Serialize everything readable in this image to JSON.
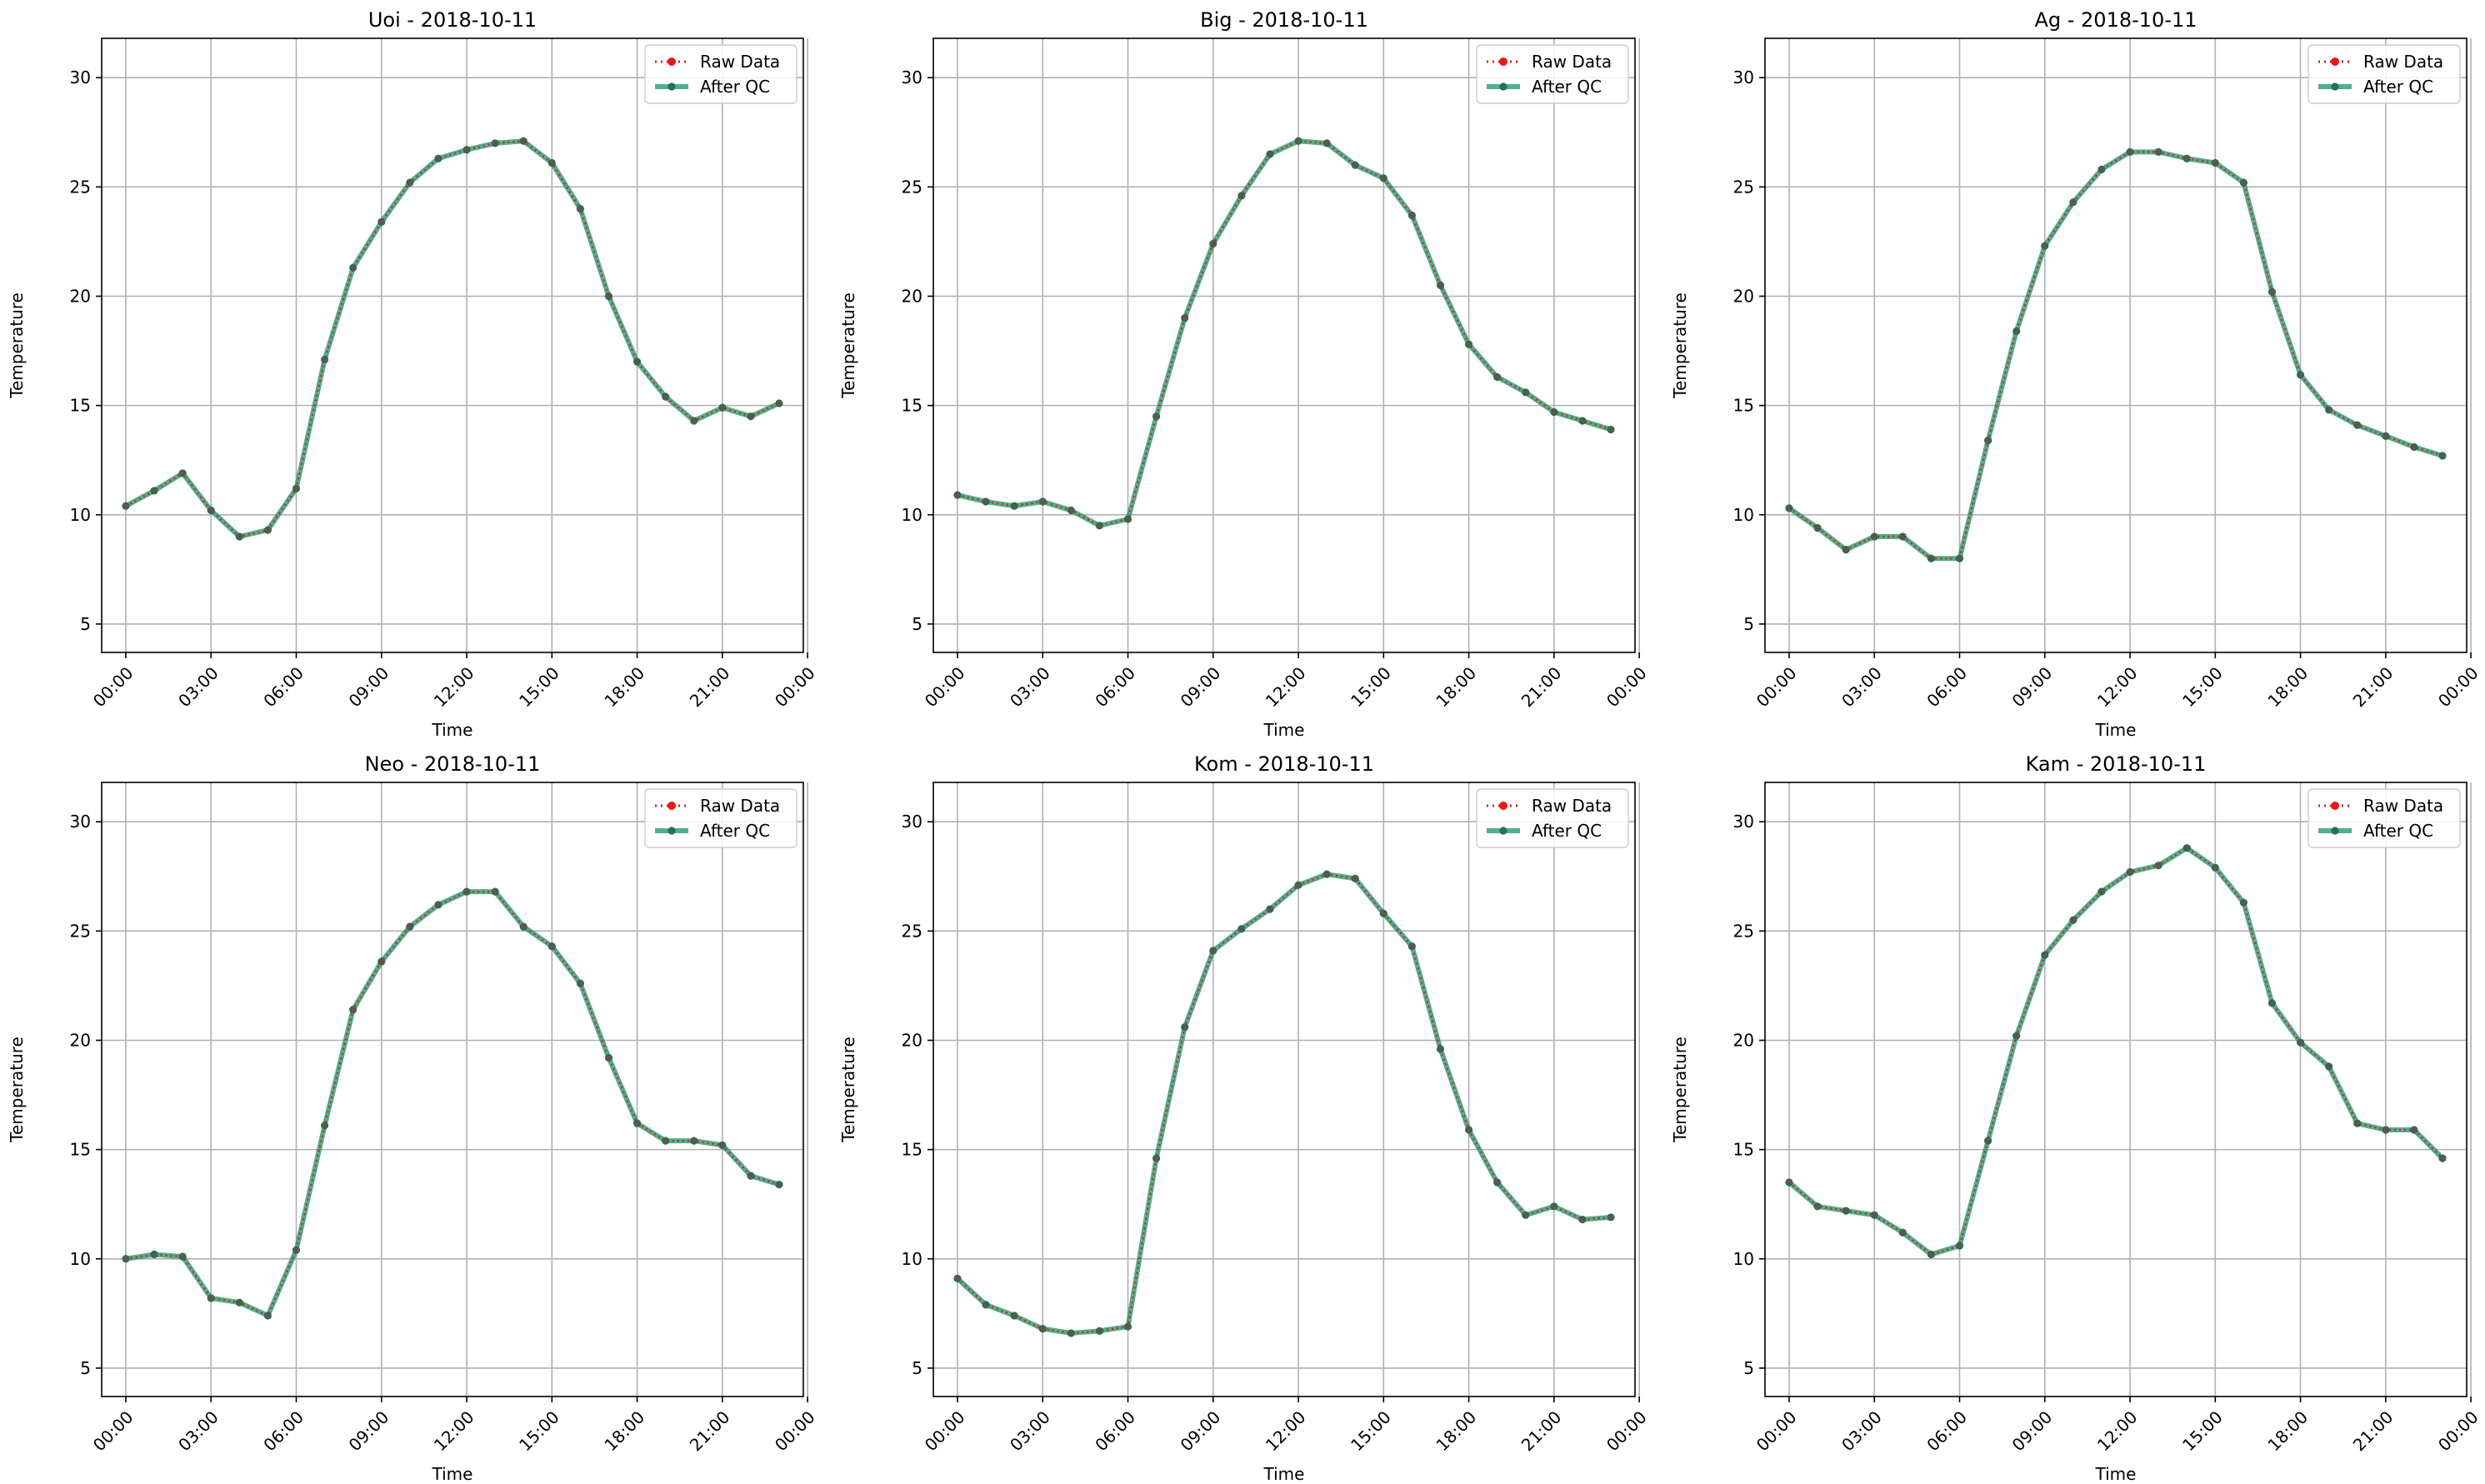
{
  "colors": {
    "raw": "#e31a1c",
    "qc": "#2a9d73",
    "qc_marker": "#2f6b55",
    "grid": "#b0b0b0"
  },
  "chart_data": [
    {
      "type": "line",
      "title": "Uoi - 2018-10-11",
      "xlabel": "Time",
      "ylabel": "Temperature",
      "ylim": [
        3.7,
        31.8
      ],
      "xlim": [
        -0.85,
        23.85
      ],
      "yticks": [
        5,
        10,
        15,
        20,
        25,
        30
      ],
      "xticks": [
        "00:00",
        "03:00",
        "06:00",
        "09:00",
        "12:00",
        "15:00",
        "18:00",
        "21:00",
        "00:00"
      ],
      "grid": true,
      "legend": "top-right",
      "x_hours": [
        0,
        1,
        2,
        3,
        4,
        5,
        6,
        7,
        8,
        9,
        10,
        11,
        12,
        13,
        14,
        15,
        16,
        17,
        18,
        19,
        20,
        21,
        22,
        23
      ],
      "series": [
        {
          "name": "Raw Data",
          "values": [
            10.4,
            11.1,
            11.9,
            10.2,
            9.0,
            9.3,
            11.2,
            17.1,
            21.3,
            23.4,
            25.2,
            26.3,
            26.7,
            27.0,
            27.1,
            26.1,
            24.0,
            20.0,
            17.0,
            15.4,
            14.3,
            14.9,
            14.5,
            15.1
          ]
        },
        {
          "name": "After QC",
          "values": [
            10.4,
            11.1,
            11.9,
            10.2,
            9.0,
            9.3,
            11.2,
            17.1,
            21.3,
            23.4,
            25.2,
            26.3,
            26.7,
            27.0,
            27.1,
            26.1,
            24.0,
            20.0,
            17.0,
            15.4,
            14.3,
            14.9,
            14.5,
            15.1
          ]
        }
      ]
    },
    {
      "type": "line",
      "title": "Big - 2018-10-11",
      "xlabel": "Time",
      "ylabel": "Temperature",
      "ylim": [
        3.7,
        31.8
      ],
      "xlim": [
        -0.85,
        23.85
      ],
      "yticks": [
        5,
        10,
        15,
        20,
        25,
        30
      ],
      "xticks": [
        "00:00",
        "03:00",
        "06:00",
        "09:00",
        "12:00",
        "15:00",
        "18:00",
        "21:00",
        "00:00"
      ],
      "grid": true,
      "legend": "top-right",
      "x_hours": [
        0,
        1,
        2,
        3,
        4,
        5,
        6,
        7,
        8,
        9,
        10,
        11,
        12,
        13,
        14,
        15,
        16,
        17,
        18,
        19,
        20,
        21,
        22,
        23
      ],
      "series": [
        {
          "name": "Raw Data",
          "values": [
            10.9,
            10.6,
            10.4,
            10.6,
            10.2,
            9.5,
            9.8,
            14.5,
            19.0,
            22.4,
            24.6,
            26.5,
            27.1,
            27.0,
            26.0,
            25.4,
            23.7,
            20.5,
            17.8,
            16.3,
            15.6,
            14.7,
            14.3,
            13.9
          ]
        },
        {
          "name": "After QC",
          "values": [
            10.9,
            10.6,
            10.4,
            10.6,
            10.2,
            9.5,
            9.8,
            14.5,
            19.0,
            22.4,
            24.6,
            26.5,
            27.1,
            27.0,
            26.0,
            25.4,
            23.7,
            20.5,
            17.8,
            16.3,
            15.6,
            14.7,
            14.3,
            13.9
          ]
        }
      ]
    },
    {
      "type": "line",
      "title": "Ag - 2018-10-11",
      "xlabel": "Time",
      "ylabel": "Temperature",
      "ylim": [
        3.7,
        31.8
      ],
      "xlim": [
        -0.85,
        23.85
      ],
      "yticks": [
        5,
        10,
        15,
        20,
        25,
        30
      ],
      "xticks": [
        "00:00",
        "03:00",
        "06:00",
        "09:00",
        "12:00",
        "15:00",
        "18:00",
        "21:00",
        "00:00"
      ],
      "grid": true,
      "legend": "top-right",
      "x_hours": [
        0,
        1,
        2,
        3,
        4,
        5,
        6,
        7,
        8,
        9,
        10,
        11,
        12,
        13,
        14,
        15,
        16,
        17,
        18,
        19,
        20,
        21,
        22,
        23
      ],
      "series": [
        {
          "name": "Raw Data",
          "values": [
            10.3,
            9.4,
            8.4,
            9.0,
            9.0,
            8.0,
            8.0,
            13.4,
            18.4,
            22.3,
            24.3,
            25.8,
            26.6,
            26.6,
            26.3,
            26.1,
            25.2,
            20.2,
            16.4,
            14.8,
            14.1,
            13.6,
            13.1,
            12.7
          ]
        },
        {
          "name": "After QC",
          "values": [
            10.3,
            9.4,
            8.4,
            9.0,
            9.0,
            8.0,
            8.0,
            13.4,
            18.4,
            22.3,
            24.3,
            25.8,
            26.6,
            26.6,
            26.3,
            26.1,
            25.2,
            20.2,
            16.4,
            14.8,
            14.1,
            13.6,
            13.1,
            12.7
          ]
        }
      ]
    },
    {
      "type": "line",
      "title": "Neo - 2018-10-11",
      "xlabel": "Time",
      "ylabel": "Temperature",
      "ylim": [
        3.7,
        31.8
      ],
      "xlim": [
        -0.85,
        23.85
      ],
      "yticks": [
        5,
        10,
        15,
        20,
        25,
        30
      ],
      "xticks": [
        "00:00",
        "03:00",
        "06:00",
        "09:00",
        "12:00",
        "15:00",
        "18:00",
        "21:00",
        "00:00"
      ],
      "grid": true,
      "legend": "top-right",
      "x_hours": [
        0,
        1,
        2,
        3,
        4,
        5,
        6,
        7,
        8,
        9,
        10,
        11,
        12,
        13,
        14,
        15,
        16,
        17,
        18,
        19,
        20,
        21,
        22,
        23
      ],
      "series": [
        {
          "name": "Raw Data",
          "values": [
            10.0,
            10.2,
            10.1,
            8.2,
            8.0,
            7.4,
            10.4,
            16.1,
            21.4,
            23.6,
            25.2,
            26.2,
            26.8,
            26.8,
            25.2,
            24.3,
            22.6,
            19.2,
            16.2,
            15.4,
            15.4,
            15.2,
            13.8,
            13.4
          ]
        },
        {
          "name": "After QC",
          "values": [
            10.0,
            10.2,
            10.1,
            8.2,
            8.0,
            7.4,
            10.4,
            16.1,
            21.4,
            23.6,
            25.2,
            26.2,
            26.8,
            26.8,
            25.2,
            24.3,
            22.6,
            19.2,
            16.2,
            15.4,
            15.4,
            15.2,
            13.8,
            13.4
          ]
        }
      ]
    },
    {
      "type": "line",
      "title": "Kom - 2018-10-11",
      "xlabel": "Time",
      "ylabel": "Temperature",
      "ylim": [
        3.7,
        31.8
      ],
      "xlim": [
        -0.85,
        23.85
      ],
      "yticks": [
        5,
        10,
        15,
        20,
        25,
        30
      ],
      "xticks": [
        "00:00",
        "03:00",
        "06:00",
        "09:00",
        "12:00",
        "15:00",
        "18:00",
        "21:00",
        "00:00"
      ],
      "grid": true,
      "legend": "top-right",
      "x_hours": [
        0,
        1,
        2,
        3,
        4,
        5,
        6,
        7,
        8,
        9,
        10,
        11,
        12,
        13,
        14,
        15,
        16,
        17,
        18,
        19,
        20,
        21,
        22,
        23
      ],
      "series": [
        {
          "name": "Raw Data",
          "values": [
            9.1,
            7.9,
            7.4,
            6.8,
            6.6,
            6.7,
            6.9,
            14.6,
            20.6,
            24.1,
            25.1,
            26.0,
            27.1,
            27.6,
            27.4,
            25.8,
            24.3,
            19.6,
            15.9,
            13.5,
            12.0,
            12.4,
            11.8,
            11.9
          ]
        },
        {
          "name": "After QC",
          "values": [
            9.1,
            7.9,
            7.4,
            6.8,
            6.6,
            6.7,
            6.9,
            14.6,
            20.6,
            24.1,
            25.1,
            26.0,
            27.1,
            27.6,
            27.4,
            25.8,
            24.3,
            19.6,
            15.9,
            13.5,
            12.0,
            12.4,
            11.8,
            11.9
          ]
        }
      ]
    },
    {
      "type": "line",
      "title": "Kam - 2018-10-11",
      "xlabel": "Time",
      "ylabel": "Temperature",
      "ylim": [
        3.7,
        31.8
      ],
      "xlim": [
        -0.85,
        23.85
      ],
      "yticks": [
        5,
        10,
        15,
        20,
        25,
        30
      ],
      "xticks": [
        "00:00",
        "03:00",
        "06:00",
        "09:00",
        "12:00",
        "15:00",
        "18:00",
        "21:00",
        "00:00"
      ],
      "grid": true,
      "legend": "top-right",
      "x_hours": [
        0,
        1,
        2,
        3,
        4,
        5,
        6,
        7,
        8,
        9,
        10,
        11,
        12,
        13,
        14,
        15,
        16,
        17,
        18,
        19,
        20,
        21,
        22,
        23
      ],
      "series": [
        {
          "name": "Raw Data",
          "values": [
            13.5,
            12.4,
            12.2,
            12.0,
            11.2,
            10.2,
            10.6,
            15.4,
            20.2,
            23.9,
            25.5,
            26.8,
            27.7,
            28.0,
            28.8,
            27.9,
            26.3,
            21.7,
            19.9,
            18.8,
            16.2,
            15.9,
            15.9,
            14.6
          ]
        },
        {
          "name": "After QC",
          "values": [
            13.5,
            12.4,
            12.2,
            12.0,
            11.2,
            10.2,
            10.6,
            15.4,
            20.2,
            23.9,
            25.5,
            26.8,
            27.7,
            28.0,
            28.8,
            27.9,
            26.3,
            21.7,
            19.9,
            18.8,
            16.2,
            15.9,
            15.9,
            14.6
          ]
        }
      ]
    }
  ]
}
